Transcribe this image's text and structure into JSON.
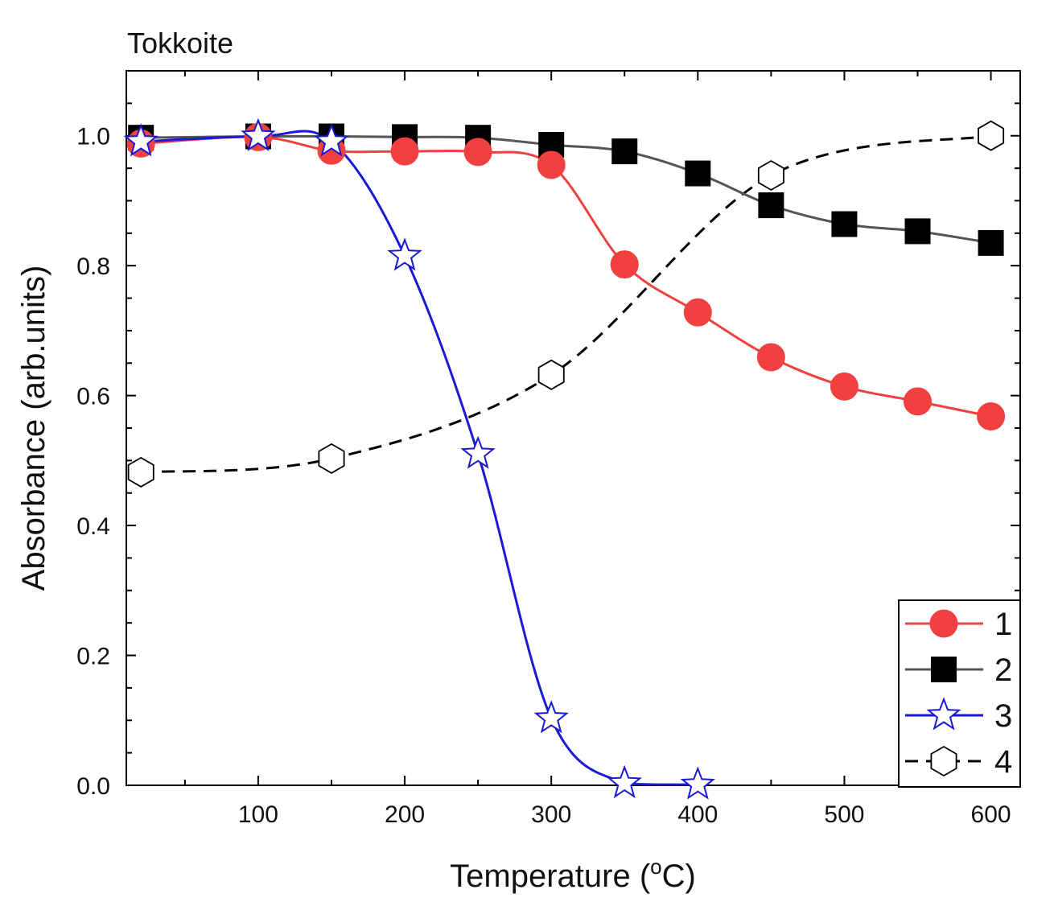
{
  "chart_data": {
    "type": "line",
    "title": "Tokkoite",
    "xlabel": {
      "main": "Temperature (",
      "sup": "o",
      "tail": "C)"
    },
    "ylabel": "Absorbance (arb.units)",
    "xlim": [
      10,
      620
    ],
    "ylim": [
      0.0,
      1.1
    ],
    "x_ticks": [
      100,
      200,
      300,
      400,
      500,
      600
    ],
    "x_tick_labels": [
      "100",
      "200",
      "300",
      "400",
      "500",
      "600"
    ],
    "y_ticks": [
      0.0,
      0.2,
      0.4,
      0.6,
      0.8,
      1.0
    ],
    "y_tick_labels": [
      "0.0",
      "0.2",
      "0.4",
      "0.6",
      "0.8",
      "1.0"
    ],
    "grid": false,
    "legend_position": "bottom-right",
    "series": [
      {
        "name": "1",
        "color": "#f04040",
        "marker": "circle",
        "line": "solid",
        "x": [
          20,
          100,
          150,
          200,
          250,
          300,
          350,
          400,
          450,
          500,
          550,
          600
        ],
        "y": [
          0.988,
          0.998,
          0.977,
          0.976,
          0.975,
          0.955,
          0.802,
          0.728,
          0.659,
          0.614,
          0.591,
          0.568
        ]
      },
      {
        "name": "2",
        "color": "#000000",
        "line_color": "#555555",
        "marker": "square",
        "line": "solid",
        "x": [
          20,
          100,
          150,
          200,
          250,
          300,
          350,
          400,
          450,
          500,
          550,
          600
        ],
        "y": [
          0.997,
          0.999,
          0.999,
          0.998,
          0.997,
          0.986,
          0.976,
          0.942,
          0.893,
          0.864,
          0.853,
          0.835
        ]
      },
      {
        "name": "3",
        "color": "#1a1ad6",
        "marker": "star",
        "line": "solid",
        "x": [
          20,
          100,
          150,
          200,
          250,
          300,
          350,
          400
        ],
        "y": [
          0.991,
          0.999,
          0.991,
          0.815,
          0.51,
          0.103,
          0.003,
          0.001
        ]
      },
      {
        "name": "4",
        "color": "#000000",
        "marker": "hexagon",
        "line": "dashed",
        "x": [
          20,
          150,
          300,
          450,
          600
        ],
        "y": [
          0.482,
          0.503,
          0.632,
          0.939,
          1.0
        ]
      }
    ]
  }
}
